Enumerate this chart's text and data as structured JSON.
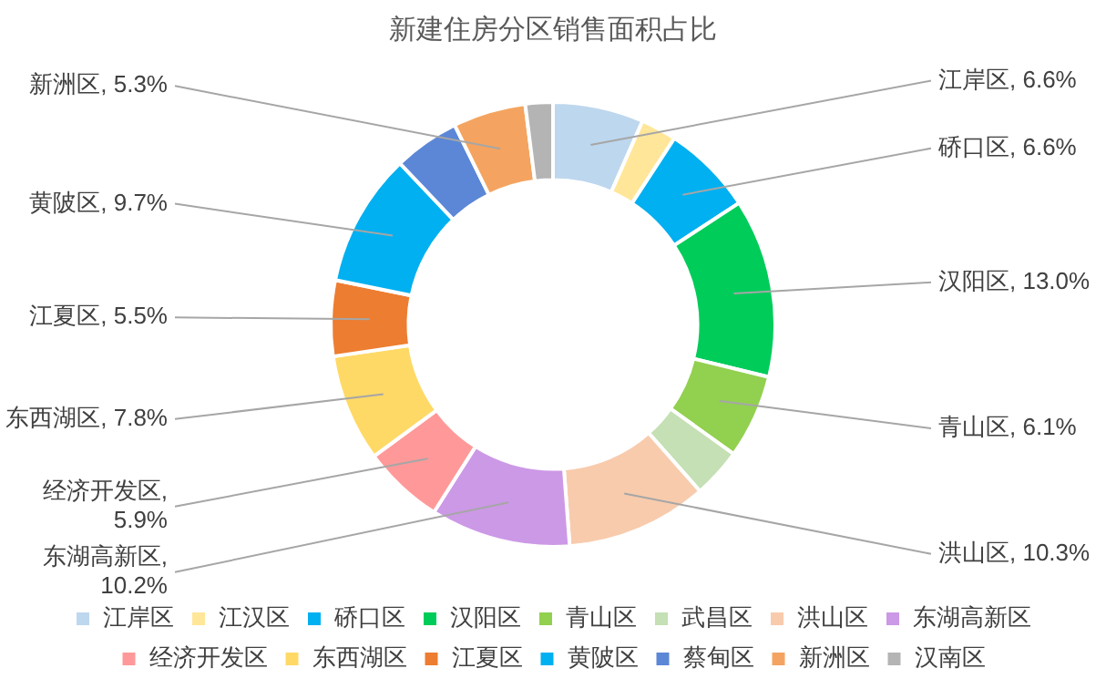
{
  "chart_data": {
    "type": "donut",
    "title": "新建住房分区销售面积占比",
    "categories": [
      "江岸区",
      "江汉区",
      "硚口区",
      "汉阳区",
      "青山区",
      "武昌区",
      "洪山区",
      "东湖高新区",
      "经济开发区",
      "东西湖区",
      "江夏区",
      "黄陂区",
      "蔡甸区",
      "新洲区",
      "汉南区"
    ],
    "values": [
      6.6,
      2.6,
      6.6,
      13.0,
      6.1,
      3.6,
      10.3,
      10.2,
      5.9,
      7.8,
      5.5,
      9.7,
      4.8,
      5.3,
      2.0
    ],
    "colors": [
      "#bdd7ee",
      "#ffe699",
      "#00b0f0",
      "#00cc5a",
      "#92d050",
      "#c5e0b4",
      "#f8cbad",
      "#cc99e6",
      "#ff9999",
      "#ffd966",
      "#ed7d31",
      "#00b0f0",
      "#5b87d6",
      "#f4a460",
      "#b4b4b4"
    ],
    "value_labels": [
      "江岸区, 6.6%",
      null,
      "硚口区, 6.6%",
      "汉阳区, 13.0%",
      "青山区, 6.1%",
      null,
      "洪山区, 10.3%",
      "东湖高新区, 10.2%",
      "经济开发区, 5.9%",
      "东西湖区, 7.8%",
      "江夏区, 5.5%",
      "黄陂区, 9.7%",
      null,
      "新洲区, 5.3%",
      null
    ],
    "legend": "bottom"
  }
}
